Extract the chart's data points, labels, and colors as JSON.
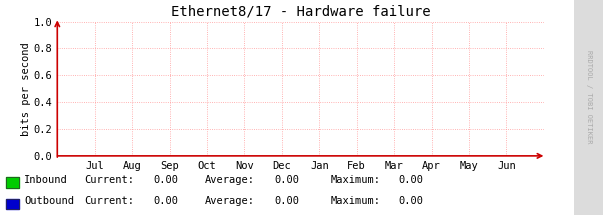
{
  "title": "Ethernet8/17 - Hardware failure",
  "ylabel": "bits per second",
  "xlim": [
    0,
    1
  ],
  "ylim": [
    0,
    1.0
  ],
  "yticks": [
    0.0,
    0.2,
    0.4,
    0.6,
    0.8,
    1.0
  ],
  "ytick_labels": [
    "0.0",
    "0.2",
    "0.4",
    "0.6",
    "0.8",
    "1.0"
  ],
  "xtick_labels": [
    "Jul",
    "Aug",
    "Sep",
    "Oct",
    "Nov",
    "Dec",
    "Jan",
    "Feb",
    "Mar",
    "Apr",
    "May",
    "Jun"
  ],
  "bg_color": "#FFFFFF",
  "plot_bg_color": "#FFFFFF",
  "sidebar_color": "#DCDCDC",
  "grid_color": "#FF9999",
  "title_color": "#000000",
  "title_fontsize": 10,
  "tick_fontsize": 7.5,
  "ylabel_fontsize": 7.5,
  "watermark": "RRDTOOL / TOBI OETIKER",
  "watermark_color": "#AAAAAA",
  "legend_items": [
    {
      "label": "Inbound",
      "color": "#00CC00"
    },
    {
      "label": "Outbound",
      "color": "#0000CC"
    }
  ],
  "legend_stats": [
    {
      "current": "0.00",
      "average": "0.00",
      "maximum": "0.00"
    },
    {
      "current": "0.00",
      "average": "0.00",
      "maximum": "0.00"
    }
  ],
  "arrow_color": "#CC0000",
  "font_family": "monospace",
  "legend_fontsize": 7.5
}
